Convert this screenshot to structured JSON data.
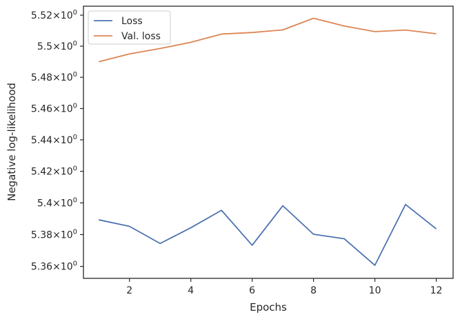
{
  "chart_data": {
    "type": "line",
    "title": "",
    "xlabel": "Epochs",
    "ylabel": "Negative log-likelihood",
    "x": [
      1,
      2,
      3,
      4,
      5,
      6,
      7,
      8,
      9,
      10,
      11,
      12
    ],
    "xlim": [
      0.5,
      12.55
    ],
    "ylim": [
      5.3525,
      5.5258
    ],
    "yscale": "log",
    "grid": false,
    "legend_position": "top-left",
    "xticks": [
      2,
      4,
      6,
      8,
      10,
      12
    ],
    "xtick_labels": [
      "2",
      "4",
      "6",
      "8",
      "10",
      "12"
    ],
    "yticks": [
      5.36,
      5.38,
      5.4,
      5.42,
      5.44,
      5.46,
      5.48,
      5.5,
      5.52
    ],
    "ytick_labels": [
      {
        "mantissa": "5.36",
        "base": "10",
        "exp": "0"
      },
      {
        "mantissa": "5.38",
        "base": "10",
        "exp": "0"
      },
      {
        "mantissa": "5.4",
        "base": "10",
        "exp": "0"
      },
      {
        "mantissa": "5.42",
        "base": "10",
        "exp": "0"
      },
      {
        "mantissa": "5.44",
        "base": "10",
        "exp": "0"
      },
      {
        "mantissa": "5.46",
        "base": "10",
        "exp": "0"
      },
      {
        "mantissa": "5.48",
        "base": "10",
        "exp": "0"
      },
      {
        "mantissa": "5.5",
        "base": "10",
        "exp": "0"
      },
      {
        "mantissa": "5.52",
        "base": "10",
        "exp": "0"
      }
    ],
    "series": [
      {
        "name": "Loss",
        "color": "#4c72b0",
        "values": [
          5.3893,
          5.3852,
          5.3744,
          5.3843,
          5.3953,
          5.3733,
          5.3982,
          5.3802,
          5.3774,
          5.3607,
          5.399,
          5.3836
        ]
      },
      {
        "name": "Val. loss",
        "color": "#dd8452",
        "values": [
          5.49,
          5.495,
          5.4985,
          5.5025,
          5.5078,
          5.5088,
          5.5105,
          5.518,
          5.513,
          5.5094,
          5.5104,
          5.508
        ]
      }
    ]
  }
}
